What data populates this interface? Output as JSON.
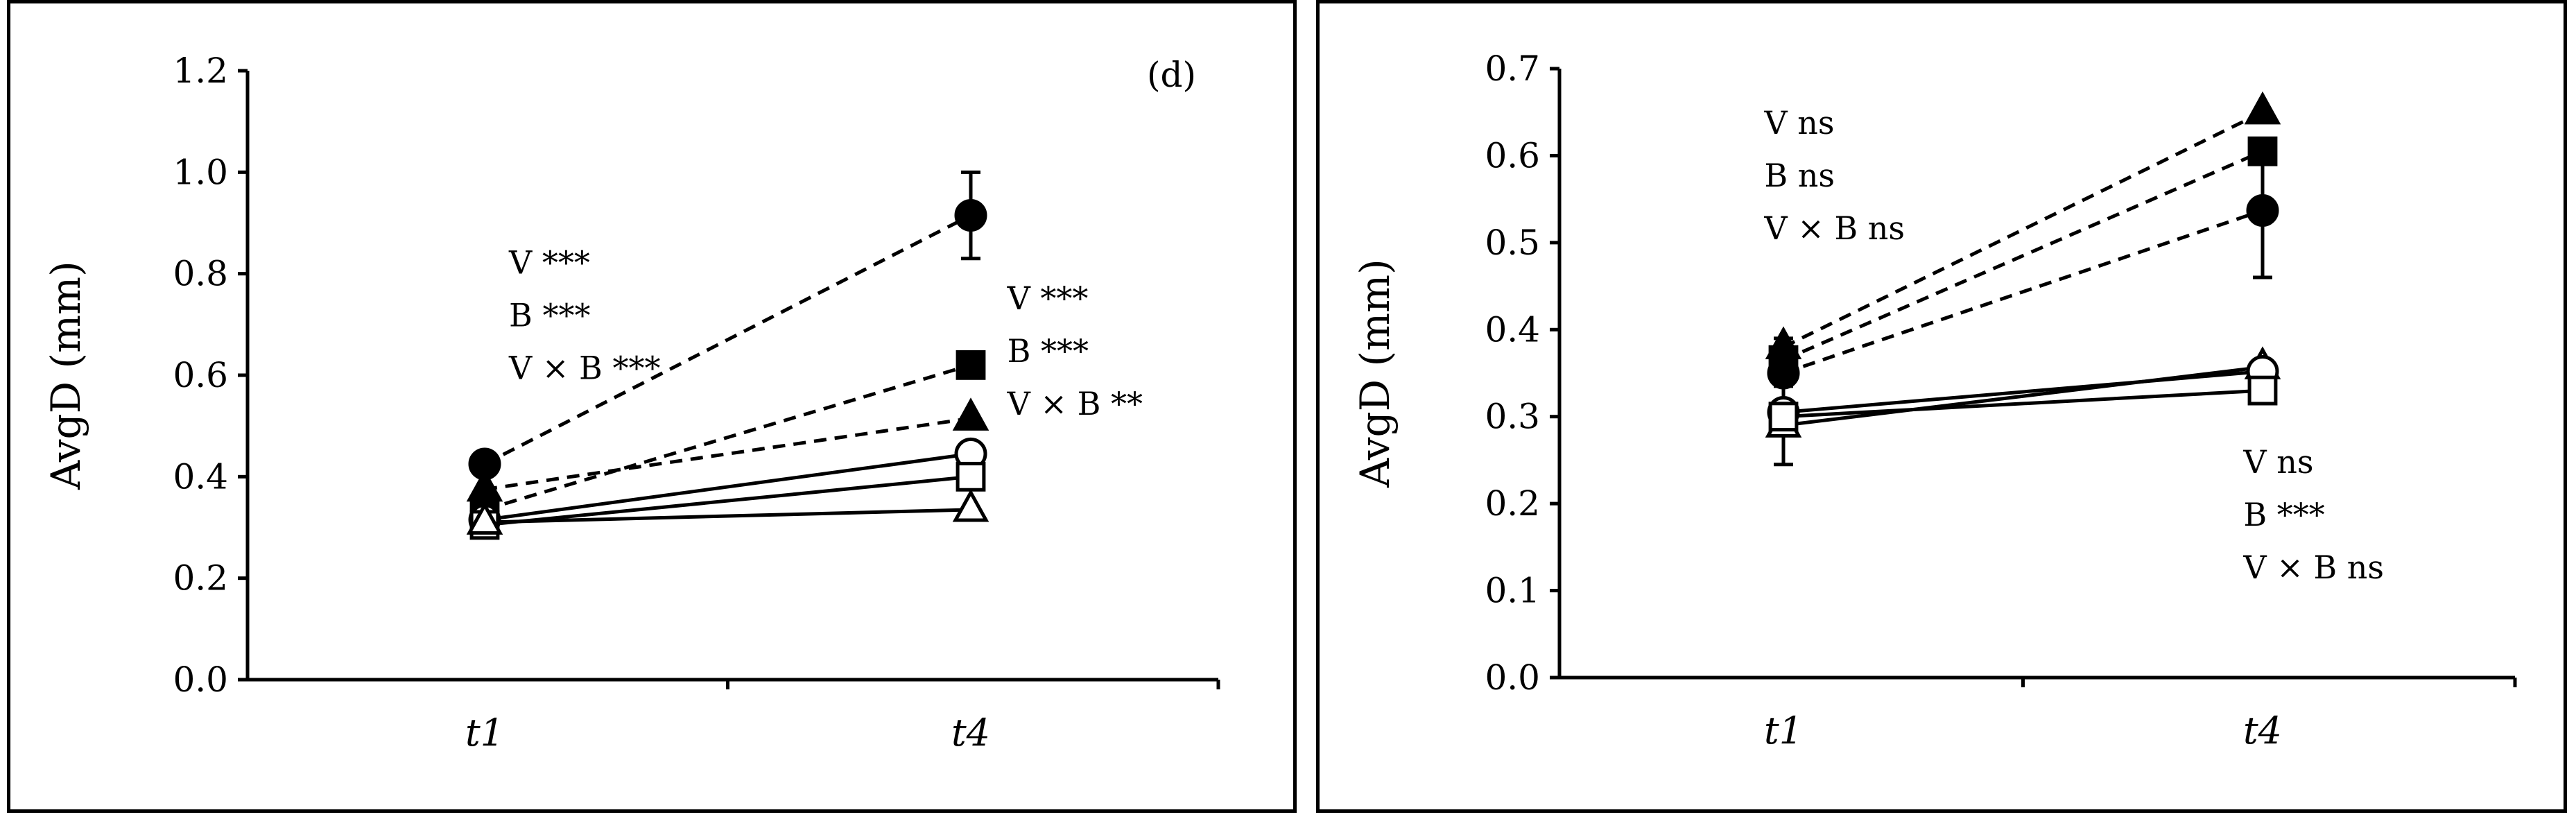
{
  "chart_data": [
    {
      "type": "line",
      "panel_label": "(d)",
      "xlabel": "",
      "ylabel": "AvgD (mm)",
      "categories": [
        "t1",
        "t4"
      ],
      "ylim": [
        0,
        1.2
      ],
      "yticks": [
        "0.0",
        "0.2",
        "0.4",
        "0.6",
        "0.8",
        "1.0",
        "1.2"
      ],
      "series": [
        {
          "marker": "filled-circle",
          "line": "dashed",
          "values": [
            0.425,
            0.915
          ],
          "error": [
            0,
            0.085
          ]
        },
        {
          "marker": "filled-square",
          "line": "dashed",
          "values": [
            0.335,
            0.62
          ],
          "error": [
            0,
            0
          ]
        },
        {
          "marker": "filled-triangle",
          "line": "dashed",
          "values": [
            0.375,
            0.515
          ],
          "error": [
            0,
            0
          ]
        },
        {
          "marker": "open-circle",
          "line": "solid",
          "values": [
            0.315,
            0.445
          ],
          "error": [
            0,
            0
          ]
        },
        {
          "marker": "open-square",
          "line": "solid",
          "values": [
            0.305,
            0.4
          ],
          "error": [
            0,
            0
          ]
        },
        {
          "marker": "open-triangle",
          "line": "solid",
          "values": [
            0.31,
            0.335
          ],
          "error": [
            0,
            0
          ]
        }
      ],
      "annotations": [
        {
          "lines": [
            "V ***",
            "B ***",
            "V × B ***"
          ],
          "x": 0.05,
          "y": 0.8
        },
        {
          "lines": [
            "V ***",
            "B ***",
            "V × B **"
          ],
          "x": 1.075,
          "y": 0.73
        }
      ]
    },
    {
      "type": "line",
      "panel_label": "",
      "xlabel": "",
      "ylabel": "AvgD (mm)",
      "categories": [
        "t1",
        "t4"
      ],
      "ylim": [
        0,
        0.7
      ],
      "yticks": [
        "0.0",
        "0.1",
        "0.2",
        "0.3",
        "0.4",
        "0.5",
        "0.6",
        "0.7"
      ],
      "series": [
        {
          "marker": "filled-triangle",
          "line": "dashed",
          "values": [
            0.38,
            0.65
          ],
          "error": [
            0,
            0
          ]
        },
        {
          "marker": "filled-square",
          "line": "dashed",
          "values": [
            0.365,
            0.605
          ],
          "error": [
            0,
            0
          ]
        },
        {
          "marker": "filled-circle",
          "line": "dashed",
          "values": [
            0.35,
            0.537
          ],
          "error": [
            0.04,
            0.077
          ]
        },
        {
          "marker": "open-triangle",
          "line": "solid",
          "values": [
            0.29,
            0.357
          ],
          "error": [
            0.045,
            0
          ]
        },
        {
          "marker": "open-circle",
          "line": "solid",
          "values": [
            0.305,
            0.352
          ],
          "error": [
            0,
            0
          ]
        },
        {
          "marker": "open-square",
          "line": "solid",
          "values": [
            0.3,
            0.33
          ],
          "error": [
            0,
            0
          ]
        }
      ],
      "annotations": [
        {
          "lines": [
            "V ns",
            "B ns",
            "V × B ns"
          ],
          "x": -0.04,
          "y": 0.625
        },
        {
          "lines": [
            "V ns",
            "B ***",
            "V × B ns"
          ],
          "x": 0.96,
          "y": 0.235
        }
      ]
    }
  ]
}
